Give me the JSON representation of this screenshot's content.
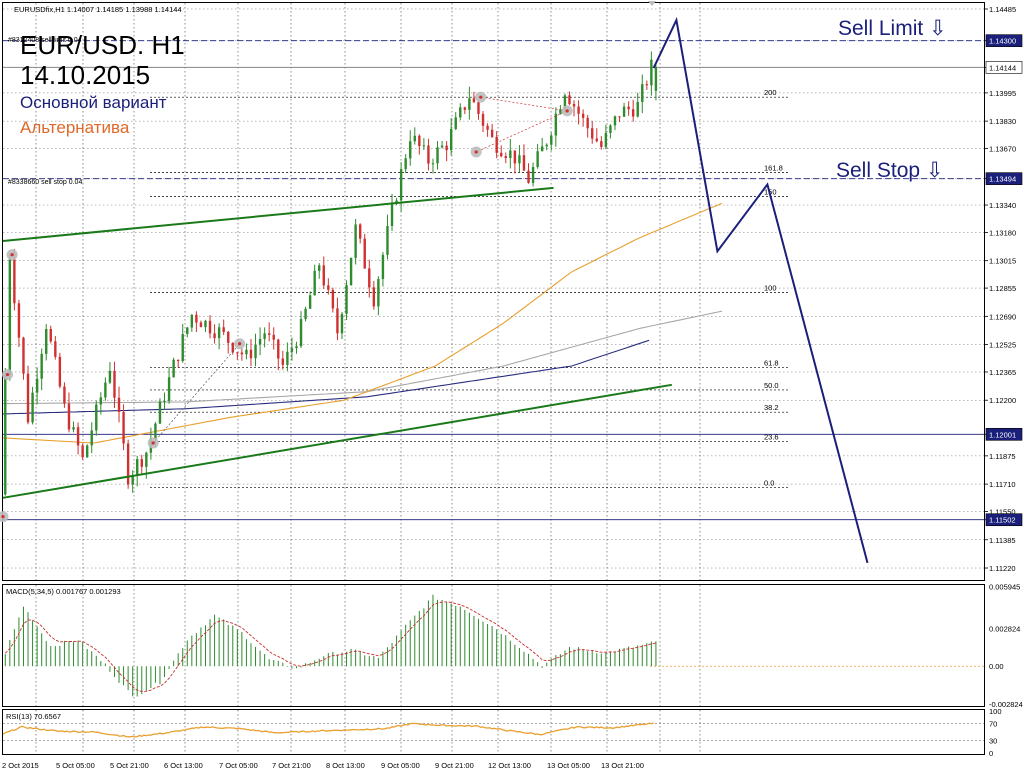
{
  "header": {
    "symbol_line": "EURUSDfix,H1  1.14007 1.14185 1.13988 1.14144",
    "title": "EUR/USD. H1",
    "date": "14.10.2015",
    "main_scenario": "Основной вариант",
    "alt_scenario": "Альтернатива",
    "sell_limit_label": "Sell Limit ⇩",
    "sell_stop_label": "Sell Stop ⇩",
    "order_limit_text": "#8312408 sell limit 0.04",
    "order_stop_text": "#8338660 sell stop 0.04",
    "macd_label": "MACD(5,34,5) 0.001767 0.001293",
    "rsi_label": "RSI(13) 70.6567"
  },
  "colors": {
    "bull": "#2e8b2e",
    "bear": "#d03030",
    "channel": "#1a7a1a",
    "forecast": "#1a1f7a",
    "ma_orange": "#e8a030",
    "ma_navy": "#2a2f80",
    "ma_gray": "#a8a8a8",
    "macd_red": "#c83030",
    "alt_text": "#e0682a",
    "main_text": "#1a1f7a",
    "tag_bg": "#1a1f7a"
  },
  "chart_data": {
    "type": "candlestick",
    "symbol": "EURUSDfix",
    "timeframe": "H1",
    "ylim": [
      1.1115,
      1.1452
    ],
    "y_ticks": [
      "1.14485",
      "1.14300",
      "1.14144",
      "1.13995",
      "1.13830",
      "1.13670",
      "1.13494",
      "1.13340",
      "1.13180",
      "1.13015",
      "1.12855",
      "1.12690",
      "1.12525",
      "1.12365",
      "1.12200",
      "1.12001",
      "1.11875",
      "1.11710",
      "1.11550",
      "1.11502",
      "1.11385",
      "1.11220"
    ],
    "highlighted_levels": [
      {
        "label": "1.14300",
        "value": 1.143
      },
      {
        "label": "1.14144",
        "value": 1.14144
      },
      {
        "label": "1.13494",
        "value": 1.13494
      },
      {
        "label": "1.12001",
        "value": 1.12001
      },
      {
        "label": "1.11502",
        "value": 1.11502
      }
    ],
    "x_labels": [
      "2 Oct 2015",
      "5 Oct 05:00",
      "5 Oct 21:00",
      "6 Oct 13:00",
      "7 Oct 05:00",
      "7 Oct 21:00",
      "8 Oct 13:00",
      "9 Oct 05:00",
      "9 Oct 21:00",
      "12 Oct 13:00",
      "13 Oct 05:00",
      "13 Oct 21:00"
    ],
    "fib_levels": [
      {
        "label": "200",
        "value": 1.1397
      },
      {
        "label": "161.8",
        "value": 1.1353
      },
      {
        "label": "150",
        "value": 1.1339
      },
      {
        "label": "100",
        "value": 1.1283
      },
      {
        "label": "61.8",
        "value": 1.1239
      },
      {
        "label": "50.0",
        "value": 1.1226
      },
      {
        "label": "38.2",
        "value": 1.1213
      },
      {
        "label": "23.6",
        "value": 1.1196
      },
      {
        "label": "0.0",
        "value": 1.1169
      }
    ],
    "anchors": [
      {
        "t": 0,
        "v": 1.1165
      },
      {
        "t": 2,
        "v": 1.1305
      },
      {
        "t": 6,
        "v": 1.121
      },
      {
        "t": 10,
        "v": 1.1265
      },
      {
        "t": 14,
        "v": 1.1215
      },
      {
        "t": 18,
        "v": 1.1185
      },
      {
        "t": 24,
        "v": 1.124
      },
      {
        "t": 28,
        "v": 1.1176
      },
      {
        "t": 32,
        "v": 1.119
      },
      {
        "t": 38,
        "v": 1.124
      },
      {
        "t": 42,
        "v": 1.127
      },
      {
        "t": 48,
        "v": 1.126
      },
      {
        "t": 54,
        "v": 1.1245
      },
      {
        "t": 58,
        "v": 1.126
      },
      {
        "t": 62,
        "v": 1.124
      },
      {
        "t": 66,
        "v": 1.1262
      },
      {
        "t": 70,
        "v": 1.13
      },
      {
        "t": 74,
        "v": 1.126
      },
      {
        "t": 78,
        "v": 1.132
      },
      {
        "t": 82,
        "v": 1.128
      },
      {
        "t": 86,
        "v": 1.133
      },
      {
        "t": 90,
        "v": 1.1375
      },
      {
        "t": 94,
        "v": 1.136
      },
      {
        "t": 98,
        "v": 1.137
      },
      {
        "t": 103,
        "v": 1.1398
      },
      {
        "t": 108,
        "v": 1.1372
      },
      {
        "t": 113,
        "v": 1.1362
      },
      {
        "t": 116,
        "v": 1.1349
      },
      {
        "t": 120,
        "v": 1.1372
      },
      {
        "t": 124,
        "v": 1.1402
      },
      {
        "t": 128,
        "v": 1.1383
      },
      {
        "t": 132,
        "v": 1.1368
      },
      {
        "t": 136,
        "v": 1.1388
      },
      {
        "t": 140,
        "v": 1.1392
      },
      {
        "t": 143,
        "v": 1.14144
      }
    ],
    "channel_upper": [
      {
        "t": 0,
        "v": 1.1313
      },
      {
        "t": 121,
        "v": 1.1344
      }
    ],
    "channel_lower": [
      {
        "t": 0,
        "v": 1.1163
      },
      {
        "t": 147,
        "v": 1.1229
      }
    ],
    "forecast_main": [
      {
        "t": 143,
        "v": 1.1414
      },
      {
        "t": 148,
        "v": 1.1442
      },
      {
        "t": 157,
        "v": 1.1307
      },
      {
        "t": 168,
        "v": 1.1346
      },
      {
        "t": 190,
        "v": 1.1125
      }
    ],
    "ma_orange": [
      {
        "t": 0,
        "v": 1.1198
      },
      {
        "t": 20,
        "v": 1.1195
      },
      {
        "t": 50,
        "v": 1.121
      },
      {
        "t": 75,
        "v": 1.122
      },
      {
        "t": 95,
        "v": 1.124
      },
      {
        "t": 110,
        "v": 1.1265
      },
      {
        "t": 125,
        "v": 1.1295
      },
      {
        "t": 140,
        "v": 1.1315
      },
      {
        "t": 158,
        "v": 1.1335
      }
    ],
    "ma_navy": [
      {
        "t": 0,
        "v": 1.1212
      },
      {
        "t": 40,
        "v": 1.1215
      },
      {
        "t": 80,
        "v": 1.1222
      },
      {
        "t": 100,
        "v": 1.123
      },
      {
        "t": 125,
        "v": 1.124
      },
      {
        "t": 142,
        "v": 1.1255
      }
    ],
    "ma_gray": [
      {
        "t": 0,
        "v": 1.1218
      },
      {
        "t": 40,
        "v": 1.1219
      },
      {
        "t": 80,
        "v": 1.1225
      },
      {
        "t": 110,
        "v": 1.124
      },
      {
        "t": 140,
        "v": 1.1262
      },
      {
        "t": 158,
        "v": 1.1272
      }
    ],
    "macd": {
      "ylim": [
        -0.0029,
        0.006
      ],
      "y_ticks": [
        "0.005945",
        "0.002824",
        "0.00",
        "-0.002824"
      ],
      "anchors": [
        {
          "t": 0,
          "v": 0.001
        },
        {
          "t": 4,
          "v": 0.0045
        },
        {
          "t": 10,
          "v": 0.0015
        },
        {
          "t": 16,
          "v": 0.002
        },
        {
          "t": 22,
          "v": 0.0001
        },
        {
          "t": 28,
          "v": -0.0023
        },
        {
          "t": 34,
          "v": -0.0012
        },
        {
          "t": 40,
          "v": 0.002
        },
        {
          "t": 46,
          "v": 0.0038
        },
        {
          "t": 52,
          "v": 0.0025
        },
        {
          "t": 58,
          "v": 0.0005
        },
        {
          "t": 64,
          "v": -0.0002
        },
        {
          "t": 70,
          "v": 0.0008
        },
        {
          "t": 76,
          "v": 0.0012
        },
        {
          "t": 82,
          "v": 0.0006
        },
        {
          "t": 88,
          "v": 0.003
        },
        {
          "t": 94,
          "v": 0.0052
        },
        {
          "t": 100,
          "v": 0.0045
        },
        {
          "t": 108,
          "v": 0.0028
        },
        {
          "t": 114,
          "v": 0.0012
        },
        {
          "t": 118,
          "v": 0.0
        },
        {
          "t": 124,
          "v": 0.0014
        },
        {
          "t": 132,
          "v": 0.001
        },
        {
          "t": 143,
          "v": 0.0018
        }
      ]
    },
    "rsi": {
      "ylim": [
        0,
        100
      ],
      "y_ticks": [
        "100",
        "70",
        "30",
        "0"
      ],
      "anchors": [
        {
          "t": 0,
          "v": 45
        },
        {
          "t": 4,
          "v": 62
        },
        {
          "t": 12,
          "v": 52
        },
        {
          "t": 20,
          "v": 50
        },
        {
          "t": 28,
          "v": 38
        },
        {
          "t": 36,
          "v": 48
        },
        {
          "t": 44,
          "v": 62
        },
        {
          "t": 52,
          "v": 58
        },
        {
          "t": 60,
          "v": 48
        },
        {
          "t": 68,
          "v": 52
        },
        {
          "t": 76,
          "v": 55
        },
        {
          "t": 84,
          "v": 58
        },
        {
          "t": 90,
          "v": 70
        },
        {
          "t": 96,
          "v": 66
        },
        {
          "t": 104,
          "v": 64
        },
        {
          "t": 112,
          "v": 52
        },
        {
          "t": 118,
          "v": 44
        },
        {
          "t": 126,
          "v": 62
        },
        {
          "t": 134,
          "v": 60
        },
        {
          "t": 143,
          "v": 70.66
        }
      ]
    }
  }
}
